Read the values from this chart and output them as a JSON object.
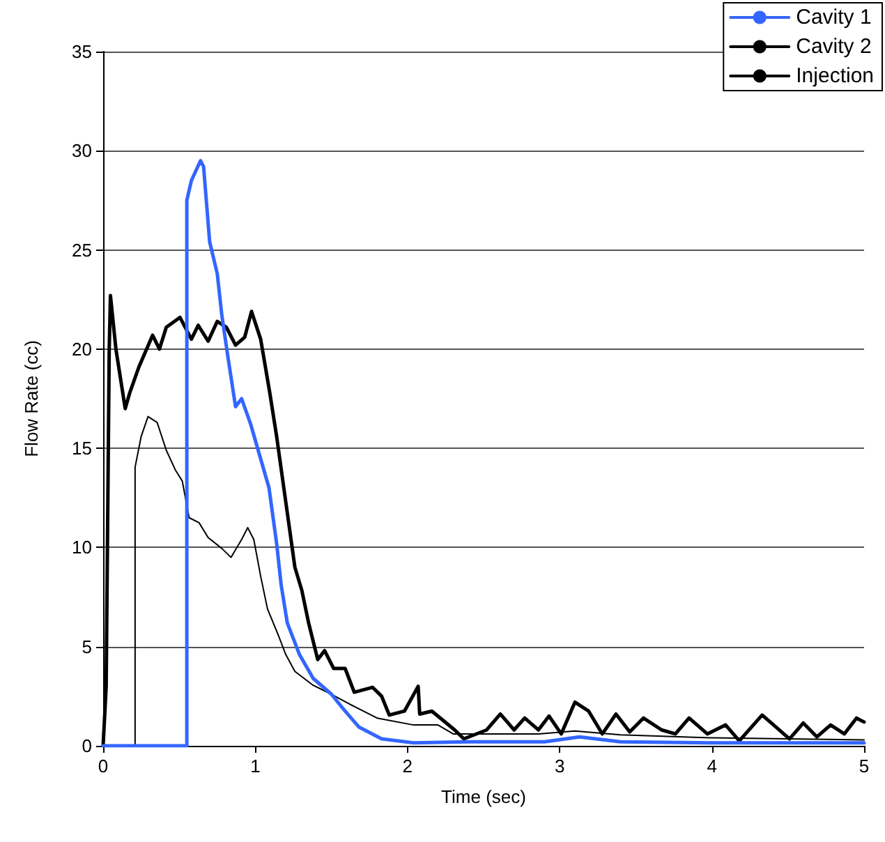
{
  "chart_data": {
    "type": "line",
    "xlabel": "Time (sec)",
    "ylabel": "Flow Rate (cc)",
    "xlim": [
      0,
      5
    ],
    "xticks": [
      0,
      1,
      2,
      3,
      4,
      5
    ],
    "ylim": [
      0,
      35
    ],
    "yticks": [
      0,
      5,
      10,
      15,
      20,
      25,
      30,
      35
    ],
    "grid": "y",
    "legend": "top right",
    "marker": "none",
    "line_style": "solid",
    "series": [
      {
        "name": "Cavity 1",
        "color": "#3366ff",
        "x": [
          0,
          0.55,
          0.55,
          0.58,
          0.64,
          0.66,
          0.7,
          0.75,
          0.78,
          0.82,
          0.87,
          0.91,
          0.97,
          1.03,
          1.09,
          1.14,
          1.17,
          1.21,
          1.29,
          1.38,
          1.5,
          1.59,
          1.68,
          1.83,
          2.04,
          2.4,
          2.9,
          3.13,
          3.4,
          4,
          5
        ],
        "values": [
          0,
          0,
          27.5,
          28.5,
          29.5,
          29.2,
          25.4,
          23.8,
          21.7,
          19.6,
          17.1,
          17.5,
          16.2,
          14.6,
          13,
          10.2,
          8.1,
          6.2,
          4.6,
          3.4,
          2.6,
          1.75,
          0.95,
          0.35,
          0.15,
          0.2,
          0.2,
          0.45,
          0.2,
          0.15,
          0.15
        ]
      },
      {
        "name": "Cavity 2",
        "color": "#000000",
        "x": [
          0,
          0.21,
          0.21,
          0.25,
          0.295,
          0.355,
          0.415,
          0.475,
          0.52,
          0.565,
          0.63,
          0.69,
          0.78,
          0.84,
          0.91,
          0.95,
          0.99,
          1.035,
          1.08,
          1.155,
          1.2,
          1.26,
          1.38,
          1.5,
          1.62,
          1.8,
          2.04,
          2.2,
          2.3,
          2.86,
          3.1,
          3.4,
          4,
          5
        ],
        "values": [
          0,
          0,
          14.05,
          15.6,
          16.6,
          16.3,
          14.9,
          13.9,
          13.35,
          11.5,
          11.25,
          10.5,
          9.95,
          9.5,
          10.4,
          11,
          10.4,
          8.55,
          6.9,
          5.5,
          4.6,
          3.75,
          3.05,
          2.6,
          2.1,
          1.4,
          1.05,
          1.05,
          0.6,
          0.6,
          0.75,
          0.55,
          0.4,
          0.3
        ]
      },
      {
        "name": "Injection",
        "color": "#000000",
        "x": [
          0,
          0.02,
          0.04,
          0.048,
          0.084,
          0.145,
          0.175,
          0.235,
          0.325,
          0.37,
          0.415,
          0.505,
          0.58,
          0.625,
          0.69,
          0.75,
          0.81,
          0.87,
          0.93,
          0.975,
          1.035,
          1.095,
          1.14,
          1.2,
          1.26,
          1.305,
          1.35,
          1.41,
          1.455,
          1.515,
          1.59,
          1.65,
          1.77,
          1.83,
          1.88,
          1.98,
          2.07,
          2.08,
          2.16,
          2.31,
          2.37,
          2.52,
          2.61,
          2.7,
          2.77,
          2.86,
          2.93,
          3.01,
          3.1,
          3.19,
          3.28,
          3.37,
          3.46,
          3.55,
          3.67,
          3.76,
          3.85,
          3.97,
          4.09,
          4.18,
          4.33,
          4.42,
          4.51,
          4.6,
          4.69,
          4.78,
          4.87,
          4.95,
          5
        ],
        "values": [
          0,
          3,
          20,
          22.7,
          20,
          17,
          17.8,
          19.1,
          20.7,
          20,
          21.1,
          21.6,
          20.5,
          21.2,
          20.4,
          21.4,
          21.1,
          20.2,
          20.6,
          21.9,
          20.5,
          17.8,
          15.6,
          12.3,
          9,
          7.85,
          6.2,
          4.35,
          4.8,
          3.9,
          3.9,
          2.7,
          2.95,
          2.5,
          1.55,
          1.75,
          3,
          1.6,
          1.75,
          0.8,
          0.35,
          0.8,
          1.6,
          0.8,
          1.4,
          0.8,
          1.5,
          0.6,
          2.2,
          1.75,
          0.6,
          1.6,
          0.7,
          1.4,
          0.8,
          0.6,
          1.4,
          0.6,
          1.05,
          0.25,
          1.55,
          0.95,
          0.35,
          1.15,
          0.45,
          1.05,
          0.6,
          1.4,
          1.2
        ]
      }
    ]
  }
}
